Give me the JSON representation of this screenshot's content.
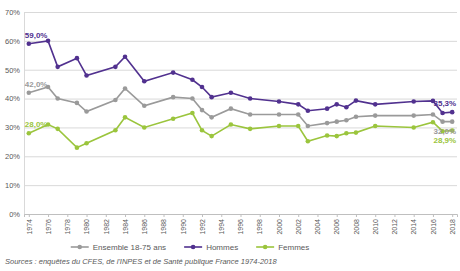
{
  "chart_data": {
    "type": "line",
    "x": [
      1974,
      1976,
      1977,
      1979,
      1980,
      1983,
      1984,
      1986,
      1989,
      1991,
      1992,
      1993,
      1995,
      1997,
      2000,
      2002,
      2003,
      2005,
      2006,
      2007,
      2008,
      2010,
      2014,
      2016,
      2017,
      2018
    ],
    "series": [
      {
        "name": "Ensemble 18-75 ans",
        "color": "#9a9a9a",
        "marker": "circle",
        "values": [
          42.0,
          44.0,
          40.0,
          38.5,
          35.5,
          39.5,
          43.5,
          37.5,
          40.5,
          40.0,
          36.0,
          33.5,
          36.5,
          34.5,
          34.5,
          34.5,
          30.5,
          31.5,
          32.0,
          32.5,
          33.7,
          34.1,
          34.1,
          34.5,
          32.0,
          32.0
        ],
        "value_labels": [
          "42,0%",
          null,
          null,
          null,
          null,
          null,
          null,
          null,
          null,
          null,
          null,
          null,
          null,
          null,
          null,
          null,
          null,
          null,
          null,
          null,
          null,
          null,
          null,
          null,
          null,
          "32,0%"
        ]
      },
      {
        "name": "Hommes",
        "color": "#51318f",
        "marker": "circle",
        "values": [
          59.0,
          60.0,
          51.0,
          54.0,
          48.0,
          51.0,
          54.5,
          46.0,
          49.0,
          46.5,
          44.0,
          40.5,
          42.0,
          40.0,
          39.0,
          38.0,
          35.8,
          36.5,
          38.0,
          37.0,
          39.3,
          38.0,
          39.0,
          39.2,
          35.0,
          35.3
        ],
        "value_labels": [
          "59,0%",
          null,
          null,
          null,
          null,
          null,
          null,
          null,
          null,
          null,
          null,
          null,
          null,
          null,
          null,
          null,
          null,
          null,
          null,
          null,
          null,
          null,
          null,
          null,
          null,
          "35,3%"
        ]
      },
      {
        "name": "Femmes",
        "color": "#9bc53d",
        "marker": "circle",
        "values": [
          28.0,
          31.0,
          29.5,
          23.0,
          24.5,
          29.0,
          33.5,
          30.0,
          33.0,
          35.0,
          29.0,
          27.0,
          31.0,
          29.5,
          30.5,
          30.5,
          25.2,
          27.2,
          27.0,
          28.0,
          28.2,
          30.5,
          30.0,
          31.8,
          28.7,
          28.9
        ],
        "value_labels": [
          "28,0%",
          null,
          null,
          null,
          null,
          null,
          null,
          null,
          null,
          null,
          null,
          null,
          null,
          null,
          null,
          null,
          null,
          null,
          null,
          null,
          null,
          null,
          null,
          null,
          null,
          "28,9%"
        ]
      }
    ],
    "xlim": [
      1973.5,
      2018.5
    ],
    "xticks": [
      1974,
      1976,
      1978,
      1980,
      1982,
      1984,
      1986,
      1988,
      1990,
      1992,
      1994,
      1996,
      1998,
      2000,
      2002,
      2004,
      2006,
      2008,
      2010,
      2012,
      2014,
      2016,
      2018
    ],
    "ylim": [
      0,
      70
    ],
    "yticks": [
      {
        "value": 0,
        "label": "0%"
      },
      {
        "value": 10,
        "label": "10%"
      },
      {
        "value": 20,
        "label": "20%"
      },
      {
        "value": 30,
        "label": "30%"
      },
      {
        "value": 40,
        "label": "40%"
      },
      {
        "value": 50,
        "label": "50%"
      },
      {
        "value": 60,
        "label": "60%"
      },
      {
        "value": 70,
        "label": "70%"
      }
    ],
    "grid": true,
    "legend": "bottom",
    "annotations": [
      "Sources : enquêtes du CFES, de l'INPES et de Santé publique France 1974-2018"
    ]
  }
}
